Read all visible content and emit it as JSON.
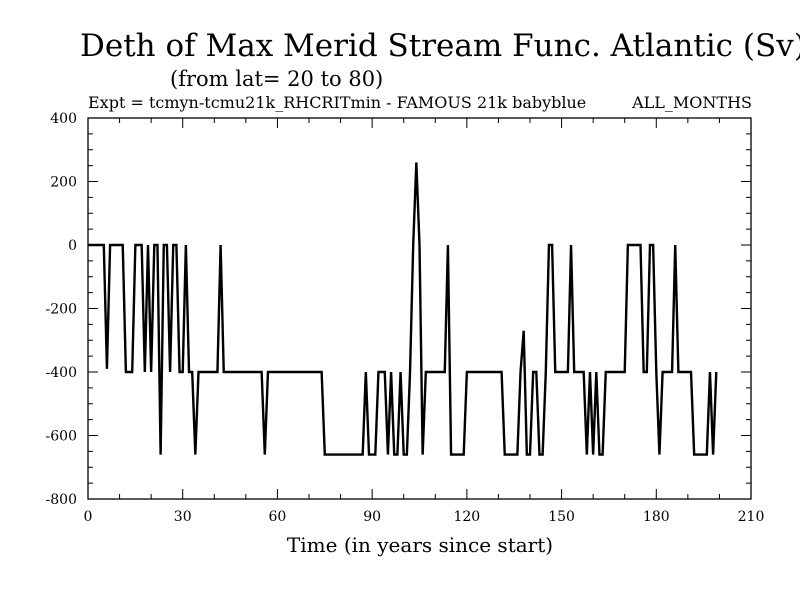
{
  "chart_data": {
    "type": "line",
    "title": "Deth of Max Merid Stream Func. Atlantic (Sv)",
    "subtitle": "(from lat= 20 to 80)",
    "experiment": "Expt = tcmyn-tcmu21k_RHCRITmin - FAMOUS 21k babyblue",
    "period": "ALL_MONTHS",
    "xlabel": "Time (in years since start)",
    "ylabel": "",
    "xlim": [
      0,
      210
    ],
    "ylim": [
      -800,
      400
    ],
    "x_ticks": [
      0,
      30,
      60,
      90,
      120,
      150,
      180,
      210
    ],
    "y_ticks": [
      -800,
      -600,
      -400,
      -200,
      0,
      200,
      400
    ],
    "grid": false,
    "series": [
      {
        "color": "#000000",
        "points": [
          [
            0,
            0
          ],
          [
            5,
            0
          ],
          [
            6,
            -390
          ],
          [
            7,
            0
          ],
          [
            11,
            0
          ],
          [
            12,
            -400
          ],
          [
            14,
            -400
          ],
          [
            15,
            0
          ],
          [
            17,
            0
          ],
          [
            18,
            -400
          ],
          [
            19,
            0
          ],
          [
            20,
            -400
          ],
          [
            21,
            0
          ],
          [
            22,
            0
          ],
          [
            23,
            -660
          ],
          [
            24,
            0
          ],
          [
            25,
            0
          ],
          [
            26,
            -400
          ],
          [
            27,
            0
          ],
          [
            28,
            0
          ],
          [
            29,
            -400
          ],
          [
            30,
            -400
          ],
          [
            31,
            0
          ],
          [
            32,
            -400
          ],
          [
            33,
            -400
          ],
          [
            34,
            -660
          ],
          [
            35,
            -400
          ],
          [
            41,
            -400
          ],
          [
            42,
            0
          ],
          [
            43,
            -400
          ],
          [
            55,
            -400
          ],
          [
            56,
            -660
          ],
          [
            57,
            -400
          ],
          [
            74,
            -400
          ],
          [
            75,
            -660
          ],
          [
            87,
            -660
          ],
          [
            88,
            -400
          ],
          [
            89,
            -660
          ],
          [
            91,
            -660
          ],
          [
            92,
            -400
          ],
          [
            94,
            -400
          ],
          [
            95,
            -660
          ],
          [
            96,
            -400
          ],
          [
            97,
            -660
          ],
          [
            98,
            -660
          ],
          [
            99,
            -400
          ],
          [
            100,
            -660
          ],
          [
            101,
            -660
          ],
          [
            102,
            -400
          ],
          [
            103,
            0
          ],
          [
            104,
            260
          ],
          [
            105,
            0
          ],
          [
            106,
            -660
          ],
          [
            107,
            -400
          ],
          [
            113,
            -400
          ],
          [
            114,
            0
          ],
          [
            115,
            -660
          ],
          [
            119,
            -660
          ],
          [
            120,
            -400
          ],
          [
            131,
            -400
          ],
          [
            132,
            -660
          ],
          [
            136,
            -660
          ],
          [
            137,
            -400
          ],
          [
            138,
            -270
          ],
          [
            139,
            -660
          ],
          [
            140,
            -660
          ],
          [
            141,
            -400
          ],
          [
            142,
            -400
          ],
          [
            143,
            -660
          ],
          [
            144,
            -660
          ],
          [
            145,
            -400
          ],
          [
            146,
            0
          ],
          [
            147,
            0
          ],
          [
            148,
            -400
          ],
          [
            152,
            -400
          ],
          [
            153,
            0
          ],
          [
            154,
            -400
          ],
          [
            157,
            -400
          ],
          [
            158,
            -660
          ],
          [
            159,
            -400
          ],
          [
            160,
            -660
          ],
          [
            161,
            -400
          ],
          [
            162,
            -660
          ],
          [
            163,
            -660
          ],
          [
            164,
            -400
          ],
          [
            170,
            -400
          ],
          [
            171,
            0
          ],
          [
            175,
            0
          ],
          [
            176,
            -400
          ],
          [
            177,
            -400
          ],
          [
            178,
            0
          ],
          [
            179,
            0
          ],
          [
            180,
            -400
          ],
          [
            181,
            -660
          ],
          [
            182,
            -400
          ],
          [
            185,
            -400
          ],
          [
            186,
            0
          ],
          [
            187,
            -400
          ],
          [
            191,
            -400
          ],
          [
            192,
            -660
          ],
          [
            196,
            -660
          ],
          [
            197,
            -400
          ],
          [
            198,
            -660
          ],
          [
            199,
            -400
          ]
        ]
      }
    ]
  }
}
